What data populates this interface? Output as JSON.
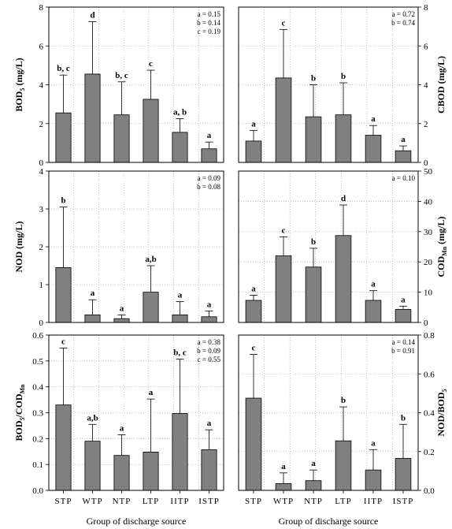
{
  "x_axis_label": "Group of discharge source",
  "chart_data": [
    {
      "type": "bar",
      "ylabel_text": "BOD",
      "ylabel_sub": "5",
      "ylabel_after": " (mg/L)",
      "ylabel_side": "left",
      "ylim": [
        0,
        8
      ],
      "yticks": [
        "0",
        "2",
        "4",
        "6",
        "8"
      ],
      "categories": [
        "STP",
        "WTP",
        "NTP",
        "LTP",
        "IITP",
        "ISTP"
      ],
      "values": [
        2.55,
        4.55,
        2.45,
        3.25,
        1.55,
        0.7
      ],
      "errors": [
        1.95,
        2.7,
        1.7,
        1.5,
        0.7,
        0.35
      ],
      "letters": [
        "b, c",
        "d",
        "b, c",
        "c",
        "a, b",
        "a"
      ],
      "stats": [
        "a = 0.15",
        "b = 0.14",
        "c = 0.19"
      ],
      "grid": true
    },
    {
      "type": "bar",
      "ylabel_text": "CBOD (mg/L)",
      "ylabel_sub": "",
      "ylabel_after": "",
      "ylabel_side": "right",
      "ylim": [
        0,
        8
      ],
      "yticks": [
        "0",
        "2",
        "4",
        "6",
        "8"
      ],
      "categories": [
        "STP",
        "WTP",
        "NTP",
        "LTP",
        "IITP",
        "ISTP"
      ],
      "values": [
        1.1,
        4.35,
        2.35,
        2.45,
        1.4,
        0.6
      ],
      "errors": [
        0.55,
        2.5,
        1.65,
        1.65,
        0.5,
        0.25
      ],
      "letters": [
        "a",
        "c",
        "b",
        "b",
        "a",
        "a"
      ],
      "stats": [
        "a = 0.72",
        "b = 0.74"
      ],
      "grid": true
    },
    {
      "type": "bar",
      "ylabel_text": "NOD (mg/L)",
      "ylabel_sub": "",
      "ylabel_after": "",
      "ylabel_side": "left",
      "ylim": [
        0,
        4
      ],
      "yticks": [
        "0",
        "1",
        "2",
        "3",
        "4"
      ],
      "categories": [
        "STP",
        "WTP",
        "NTP",
        "LTP",
        "IITP",
        "ISTP"
      ],
      "values": [
        1.45,
        0.2,
        0.1,
        0.8,
        0.2,
        0.15
      ],
      "errors": [
        1.6,
        0.4,
        0.1,
        0.7,
        0.35,
        0.15
      ],
      "letters": [
        "b",
        "a",
        "a",
        "a,b",
        "a",
        "a"
      ],
      "stats": [
        "a = 0.09",
        "b = 0.08"
      ],
      "grid": true
    },
    {
      "type": "bar",
      "ylabel_text": "COD",
      "ylabel_sub": "Mn",
      "ylabel_after": " (mg/L)",
      "ylabel_side": "right",
      "ylim": [
        0,
        50
      ],
      "yticks": [
        "0",
        "10",
        "20",
        "30",
        "40",
        "50"
      ],
      "categories": [
        "STP",
        "WTP",
        "NTP",
        "LTP",
        "IITP",
        "ISTP"
      ],
      "values": [
        7.3,
        22,
        18.3,
        28.7,
        7.3,
        4.3
      ],
      "errors": [
        1.7,
        6.3,
        6.2,
        10.1,
        3.2,
        1.1
      ],
      "letters": [
        "a",
        "c",
        "b",
        "d",
        "a",
        "a"
      ],
      "stats": [
        "a = 0.10"
      ],
      "grid": true
    },
    {
      "type": "bar",
      "ylabel_text": "BOD",
      "ylabel_sub": "5",
      "ylabel_after": "/COD",
      "ylabel_sub2": "Mn",
      "ylabel_side": "left",
      "ylim": [
        0,
        0.6
      ],
      "yticks": [
        "0.0",
        "0.1",
        "0.2",
        "0.3",
        "0.4",
        "0.5",
        "0.6"
      ],
      "categories": [
        "STP",
        "WTP",
        "NTP",
        "LTP",
        "IITP",
        "ISTP"
      ],
      "values": [
        0.33,
        0.19,
        0.135,
        0.148,
        0.297,
        0.157
      ],
      "errors": [
        0.22,
        0.065,
        0.08,
        0.205,
        0.21,
        0.077
      ],
      "letters": [
        "c",
        "a,b",
        "a",
        "a",
        "b, c",
        "a"
      ],
      "stats": [
        "a = 0.38",
        "b = 0.09",
        "c = 0.55"
      ],
      "grid": true
    },
    {
      "type": "bar",
      "ylabel_text": "NOD/BOD",
      "ylabel_sub": "5",
      "ylabel_after": "",
      "ylabel_side": "right",
      "ylim": [
        0,
        0.8
      ],
      "yticks": [
        "0.0",
        "0.2",
        "0.4",
        "0.6",
        "0.8"
      ],
      "categories": [
        "STP",
        "WTP",
        "NTP",
        "LTP",
        "IITP",
        "ISTP"
      ],
      "values": [
        0.475,
        0.035,
        0.05,
        0.255,
        0.105,
        0.165
      ],
      "errors": [
        0.225,
        0.055,
        0.055,
        0.175,
        0.105,
        0.175
      ],
      "letters": [
        "c",
        "a",
        "a",
        "b",
        "a",
        "b"
      ],
      "stats": [
        "a = 0.14",
        "b = 0.91"
      ],
      "grid": true
    }
  ]
}
